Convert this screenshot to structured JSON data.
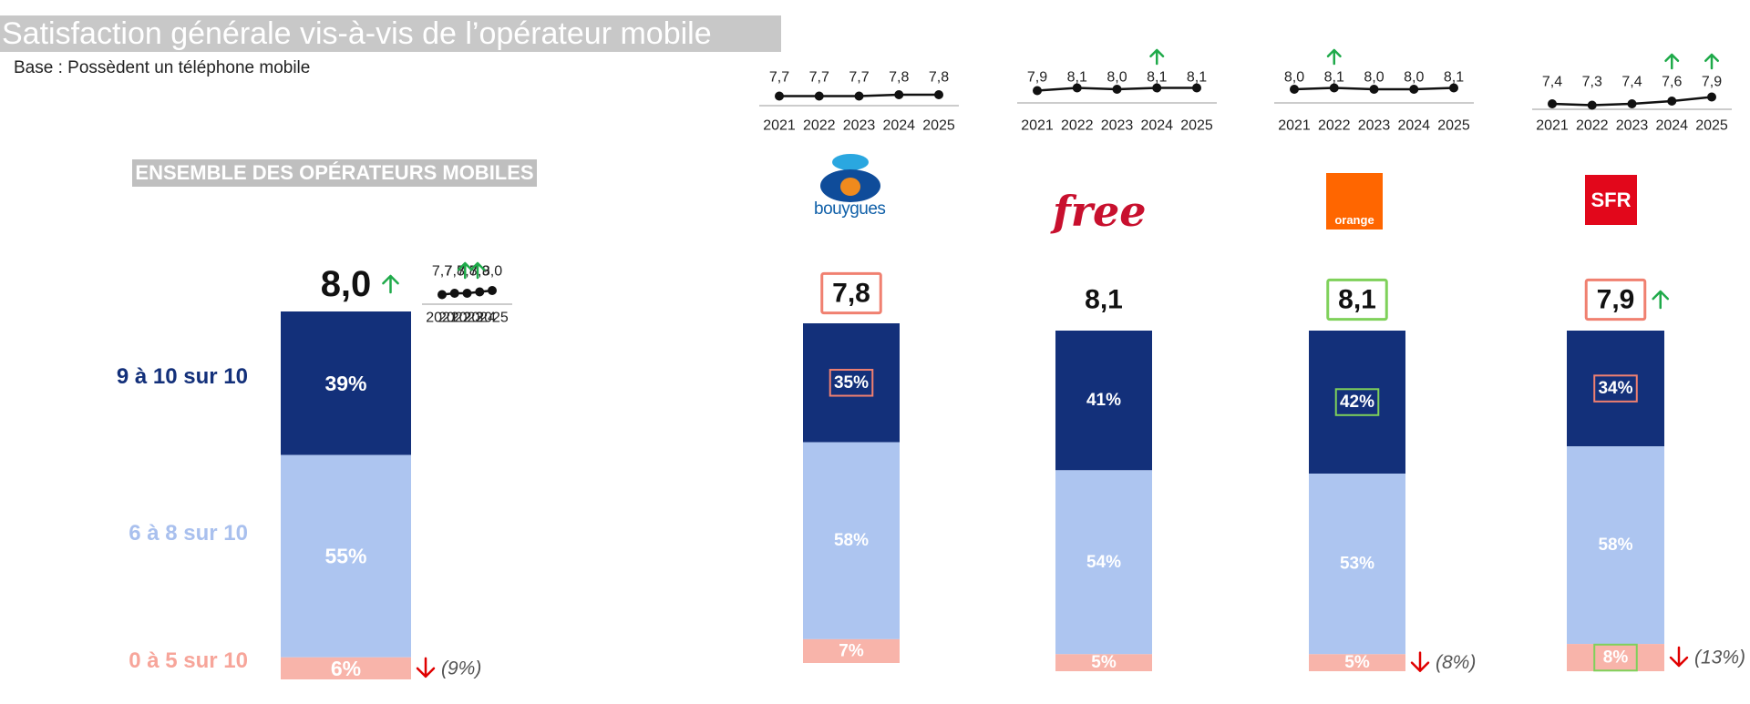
{
  "title": "Satisfaction générale vis-à-vis de l’opérateur mobile",
  "base": "Base : Possèdent un téléphone mobile",
  "ensemble_label": "ENSEMBLE DES OPÉRATEURS MOBILES",
  "categories": {
    "high": "9 à 10 sur 10",
    "mid": "6 à 8 sur 10",
    "low": "0 à 5 sur 10"
  },
  "colors": {
    "high": "#13307a",
    "mid": "#adc5f0",
    "low": "#f8b4aa",
    "up": "#1faa4a",
    "down": "#e00000",
    "box_red": "#f08070",
    "box_green": "#7fd15a",
    "axis": "#bbbbbb"
  },
  "logos": {
    "bouygues": "bouygues",
    "free": "free",
    "orange": "orange",
    "sfr": "SFR"
  },
  "chart_data": [
    {
      "type": "bar",
      "stacked": true,
      "name": "Ensemble des opérateurs mobiles",
      "score": "8,0",
      "score_trend": "up",
      "score_box": "none",
      "segments": [
        {
          "name": "9 à 10 sur 10",
          "value": 39,
          "label": "39%",
          "box": "none"
        },
        {
          "name": "6 à 8 sur 10",
          "value": 55,
          "label": "55%",
          "box": "none"
        },
        {
          "name": "0 à 5 sur 10",
          "value": 6,
          "label": "6%",
          "box": "none",
          "trend": "down",
          "note": "(9%)"
        }
      ],
      "trend": {
        "type": "line",
        "years": [
          "2021",
          "2022",
          "2023",
          "2024",
          "2025"
        ],
        "values": [
          7.7,
          7.8,
          7.8,
          7.9,
          8.0
        ],
        "labels": [
          "7,7",
          "7,8",
          "7,8",
          "7,9",
          "8,0"
        ],
        "up": [
          false,
          false,
          false,
          true,
          true
        ]
      }
    },
    {
      "type": "bar",
      "stacked": true,
      "name": "Bouygues Telecom",
      "score": "7,8",
      "score_trend": "none",
      "score_box": "red",
      "segments": [
        {
          "name": "9 à 10 sur 10",
          "value": 35,
          "label": "35%",
          "box": "red"
        },
        {
          "name": "6 à 8 sur 10",
          "value": 58,
          "label": "58%",
          "box": "none"
        },
        {
          "name": "0 à 5 sur 10",
          "value": 7,
          "label": "7%",
          "box": "none",
          "trend": "none",
          "note": ""
        }
      ],
      "trend": {
        "type": "line",
        "years": [
          "2021",
          "2022",
          "2023",
          "2024",
          "2025"
        ],
        "values": [
          7.7,
          7.7,
          7.7,
          7.8,
          7.8
        ],
        "labels": [
          "7,7",
          "7,7",
          "7,7",
          "7,8",
          "7,8"
        ],
        "up": [
          false,
          false,
          false,
          false,
          false
        ]
      }
    },
    {
      "type": "bar",
      "stacked": true,
      "name": "Free",
      "score": "8,1",
      "score_trend": "none",
      "score_box": "none",
      "segments": [
        {
          "name": "9 à 10 sur 10",
          "value": 41,
          "label": "41%",
          "box": "none"
        },
        {
          "name": "6 à 8 sur 10",
          "value": 54,
          "label": "54%",
          "box": "none"
        },
        {
          "name": "0 à 5 sur 10",
          "value": 5,
          "label": "5%",
          "box": "none",
          "trend": "none",
          "note": ""
        }
      ],
      "trend": {
        "type": "line",
        "years": [
          "2021",
          "2022",
          "2023",
          "2024",
          "2025"
        ],
        "values": [
          7.9,
          8.1,
          8.0,
          8.1,
          8.1
        ],
        "labels": [
          "7,9",
          "8,1",
          "8,0",
          "8,1",
          "8,1"
        ],
        "up": [
          false,
          false,
          false,
          true,
          false
        ]
      }
    },
    {
      "type": "bar",
      "stacked": true,
      "name": "Orange",
      "score": "8,1",
      "score_trend": "none",
      "score_box": "green",
      "segments": [
        {
          "name": "9 à 10 sur 10",
          "value": 42,
          "label": "42%",
          "box": "green"
        },
        {
          "name": "6 à 8 sur 10",
          "value": 53,
          "label": "53%",
          "box": "none"
        },
        {
          "name": "0 à 5 sur 10",
          "value": 5,
          "label": "5%",
          "box": "none",
          "trend": "down",
          "note": "(8%)"
        }
      ],
      "trend": {
        "type": "line",
        "years": [
          "2021",
          "2022",
          "2023",
          "2024",
          "2025"
        ],
        "values": [
          8.0,
          8.1,
          8.0,
          8.0,
          8.1
        ],
        "labels": [
          "8,0",
          "8,1",
          "8,0",
          "8,0",
          "8,1"
        ],
        "up": [
          false,
          true,
          false,
          false,
          false
        ]
      }
    },
    {
      "type": "bar",
      "stacked": true,
      "name": "SFR",
      "score": "7,9",
      "score_trend": "up",
      "score_box": "red",
      "segments": [
        {
          "name": "9 à 10 sur 10",
          "value": 34,
          "label": "34%",
          "box": "red"
        },
        {
          "name": "6 à 8 sur 10",
          "value": 58,
          "label": "58%",
          "box": "none"
        },
        {
          "name": "0 à 5 sur 10",
          "value": 8,
          "label": "8%",
          "box": "green",
          "trend": "down",
          "note": "(13%)"
        }
      ],
      "trend": {
        "type": "line",
        "years": [
          "2021",
          "2022",
          "2023",
          "2024",
          "2025"
        ],
        "values": [
          7.4,
          7.3,
          7.4,
          7.6,
          7.9
        ],
        "labels": [
          "7,4",
          "7,3",
          "7,4",
          "7,6",
          "7,9"
        ],
        "up": [
          false,
          false,
          false,
          true,
          true
        ]
      }
    }
  ]
}
